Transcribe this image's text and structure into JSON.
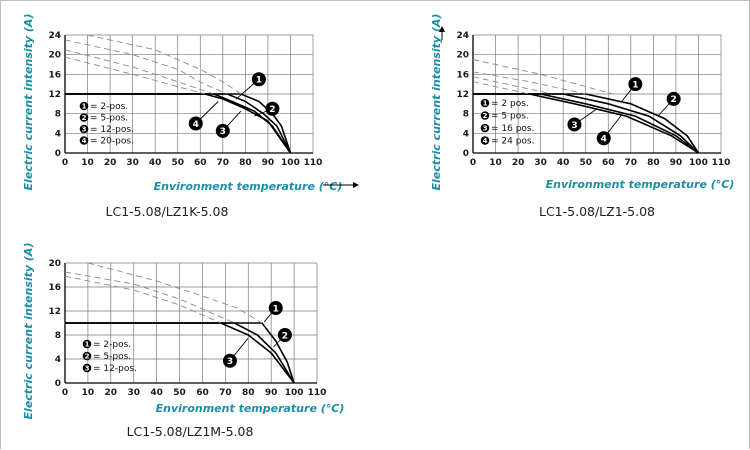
{
  "colors": {
    "axis_title": "#1a8fa6",
    "grid": "#7a7a7a",
    "curve": "#000000",
    "dashed": "#8a8a8a"
  },
  "chart_data": [
    {
      "type": "line",
      "caption": "LC1-5.08/LZ1K-5.08",
      "xlabel": "Environment temperature  (°C)",
      "ylabel": "Electric current intensity (A)",
      "xlim": [
        0,
        110
      ],
      "ylim": [
        0,
        24
      ],
      "xticks": [
        "0",
        "10",
        "20",
        "30",
        "40",
        "50",
        "60",
        "70",
        "80",
        "90",
        "100",
        "110"
      ],
      "yticks": [
        "0",
        "4",
        "8",
        "12",
        "16",
        "20",
        "24"
      ],
      "grid": true,
      "x_arrow": true,
      "y_arrow": false,
      "legend": [
        "= 2-pos.",
        "= 5-pos.",
        "= 12-pos.",
        "= 20-pos."
      ],
      "series": [
        {
          "name": "2-pos.",
          "dashed": false,
          "points": [
            [
              0,
              12
            ],
            [
              78,
              12
            ],
            [
              86,
              10.5
            ],
            [
              92,
              8
            ],
            [
              96,
              5.5
            ],
            [
              100,
              0
            ]
          ]
        },
        {
          "name": "5-pos.",
          "dashed": false,
          "points": [
            [
              0,
              12
            ],
            [
              72,
              12
            ],
            [
              80,
              10.5
            ],
            [
              88,
              8
            ],
            [
              94,
              5.5
            ],
            [
              100,
              0
            ]
          ]
        },
        {
          "name": "12-pos.",
          "dashed": false,
          "points": [
            [
              0,
              12
            ],
            [
              66,
              12
            ],
            [
              74,
              10.5
            ],
            [
              84,
              8.5
            ],
            [
              92,
              5.5
            ],
            [
              100,
              0
            ]
          ]
        },
        {
          "name": "20-pos.",
          "dashed": false,
          "points": [
            [
              0,
              12
            ],
            [
              62,
              12
            ],
            [
              70,
              11
            ],
            [
              80,
              9
            ],
            [
              90,
              6.5
            ],
            [
              100,
              0
            ]
          ]
        },
        {
          "name": "",
          "dashed": true,
          "points": [
            [
              10,
              24
            ],
            [
              40,
              21
            ],
            [
              60,
              17
            ],
            [
              70,
              14.5
            ],
            [
              78,
              12
            ]
          ]
        },
        {
          "name": "",
          "dashed": true,
          "points": [
            [
              0,
              23
            ],
            [
              30,
              20
            ],
            [
              50,
              17
            ],
            [
              62,
              14
            ],
            [
              72,
              12
            ]
          ]
        },
        {
          "name": "",
          "dashed": true,
          "points": [
            [
              0,
              21
            ],
            [
              30,
              17.5
            ],
            [
              50,
              14.5
            ],
            [
              66,
              12
            ]
          ]
        },
        {
          "name": "",
          "dashed": true,
          "points": [
            [
              0,
              19.5
            ],
            [
              30,
              16
            ],
            [
              50,
              13.5
            ],
            [
              62,
              12
            ]
          ]
        }
      ],
      "markers": [
        {
          "label": "1",
          "x": 86,
          "y": 15,
          "tx": 76,
          "ty": 11
        },
        {
          "label": "2",
          "x": 92,
          "y": 9,
          "tx": 84,
          "ty": 7.5
        },
        {
          "label": "3",
          "x": 70,
          "y": 4.5,
          "tx": 78,
          "ty": 8.5
        },
        {
          "label": "4",
          "x": 58,
          "y": 6,
          "tx": 68,
          "ty": 10.5
        }
      ]
    },
    {
      "type": "line",
      "caption": "LC1-5.08/LZ1-5.08",
      "xlabel": "Environment temperature  (°C)",
      "ylabel": "Electric current intensity (A)",
      "xlim": [
        0,
        110
      ],
      "ylim": [
        0,
        24
      ],
      "xticks": [
        "0",
        "10",
        "20",
        "30",
        "40",
        "50",
        "60",
        "70",
        "80",
        "90",
        "100",
        "110"
      ],
      "yticks": [
        "0",
        "4",
        "8",
        "12",
        "16",
        "20",
        "24"
      ],
      "grid": true,
      "x_arrow": false,
      "y_arrow": true,
      "legend": [
        "= 2 pos.",
        "= 5 pos.",
        "= 16 pos.",
        "= 24 pos."
      ],
      "series": [
        {
          "name": "2 pos.",
          "dashed": false,
          "points": [
            [
              0,
              12
            ],
            [
              50,
              12
            ],
            [
              70,
              10
            ],
            [
              85,
              7
            ],
            [
              95,
              3.5
            ],
            [
              100,
              0
            ]
          ]
        },
        {
          "name": "5 pos.",
          "dashed": false,
          "points": [
            [
              0,
              12
            ],
            [
              40,
              12
            ],
            [
              60,
              10
            ],
            [
              78,
              7.5
            ],
            [
              92,
              3.5
            ],
            [
              100,
              0
            ]
          ]
        },
        {
          "name": "16 pos.",
          "dashed": false,
          "points": [
            [
              0,
              12
            ],
            [
              30,
              12
            ],
            [
              50,
              10
            ],
            [
              72,
              7.5
            ],
            [
              90,
              3.5
            ],
            [
              100,
              0
            ]
          ]
        },
        {
          "name": "24 pos.",
          "dashed": false,
          "points": [
            [
              0,
              12
            ],
            [
              25,
              12
            ],
            [
              45,
              10
            ],
            [
              68,
              7.5
            ],
            [
              88,
              3.5
            ],
            [
              100,
              0
            ]
          ]
        },
        {
          "name": "",
          "dashed": true,
          "points": [
            [
              0,
              19
            ],
            [
              30,
              16
            ],
            [
              50,
              13.5
            ],
            [
              62,
              12
            ]
          ]
        },
        {
          "name": "",
          "dashed": true,
          "points": [
            [
              0,
              16.5
            ],
            [
              25,
              14.5
            ],
            [
              40,
              13
            ],
            [
              50,
              12
            ]
          ]
        },
        {
          "name": "",
          "dashed": true,
          "points": [
            [
              0,
              15.5
            ],
            [
              20,
              13.5
            ],
            [
              35,
              12
            ]
          ]
        },
        {
          "name": "",
          "dashed": true,
          "points": [
            [
              0,
              14.5
            ],
            [
              15,
              13
            ],
            [
              25,
              12
            ]
          ]
        }
      ],
      "markers": [
        {
          "label": "1",
          "x": 72,
          "y": 14,
          "tx": 66,
          "ty": 10.5
        },
        {
          "label": "2",
          "x": 89,
          "y": 11,
          "tx": 82,
          "ty": 7.5
        },
        {
          "label": "3",
          "x": 45,
          "y": 5.8,
          "tx": 55,
          "ty": 9
        },
        {
          "label": "4",
          "x": 58,
          "y": 3,
          "tx": 66,
          "ty": 7.8
        }
      ]
    },
    {
      "type": "line",
      "caption": "LC1-5.08/LZ1M-5.08",
      "xlabel": "Environment temperature  (°C)",
      "ylabel": "Electric current intensity (A)",
      "xlim": [
        0,
        110
      ],
      "ylim": [
        0,
        20
      ],
      "xticks": [
        "0",
        "10",
        "20",
        "30",
        "40",
        "50",
        "60",
        "70",
        "80",
        "90",
        "100",
        "110"
      ],
      "yticks": [
        "0",
        "4",
        "8",
        "12",
        "16",
        "20"
      ],
      "grid": true,
      "x_arrow": false,
      "y_arrow": false,
      "legend": [
        "= 2-pos.",
        "= 5-pos.",
        "= 12-pos."
      ],
      "series": [
        {
          "name": "2-pos.",
          "dashed": false,
          "points": [
            [
              0,
              10
            ],
            [
              86,
              10
            ],
            [
              92,
              7
            ],
            [
              97,
              3.5
            ],
            [
              100,
              0
            ]
          ]
        },
        {
          "name": "5-pos.",
          "dashed": false,
          "points": [
            [
              0,
              10
            ],
            [
              74,
              10
            ],
            [
              84,
              8
            ],
            [
              92,
              5
            ],
            [
              100,
              0
            ]
          ]
        },
        {
          "name": "12-pos.",
          "dashed": false,
          "points": [
            [
              0,
              10
            ],
            [
              68,
              10
            ],
            [
              80,
              8
            ],
            [
              90,
              5
            ],
            [
              100,
              0
            ]
          ]
        },
        {
          "name": "",
          "dashed": true,
          "points": [
            [
              10,
              20
            ],
            [
              40,
              17
            ],
            [
              60,
              14.5
            ],
            [
              75,
              12.5
            ],
            [
              86,
              10
            ]
          ]
        },
        {
          "name": "",
          "dashed": true,
          "points": [
            [
              0,
              18.5
            ],
            [
              30,
              16.5
            ],
            [
              50,
              14
            ],
            [
              65,
              11.5
            ],
            [
              74,
              10
            ]
          ]
        },
        {
          "name": "",
          "dashed": true,
          "points": [
            [
              0,
              17.8
            ],
            [
              30,
              15.5
            ],
            [
              50,
              13
            ],
            [
              62,
              11
            ],
            [
              68,
              10
            ]
          ]
        }
      ],
      "markers": [
        {
          "label": "1",
          "x": 92,
          "y": 12.5,
          "tx": 87,
          "ty": 10.2
        },
        {
          "label": "2",
          "x": 96,
          "y": 8,
          "tx": 91,
          "ty": 6
        },
        {
          "label": "3",
          "x": 72,
          "y": 3.7,
          "tx": 80,
          "ty": 7.5
        }
      ]
    }
  ]
}
